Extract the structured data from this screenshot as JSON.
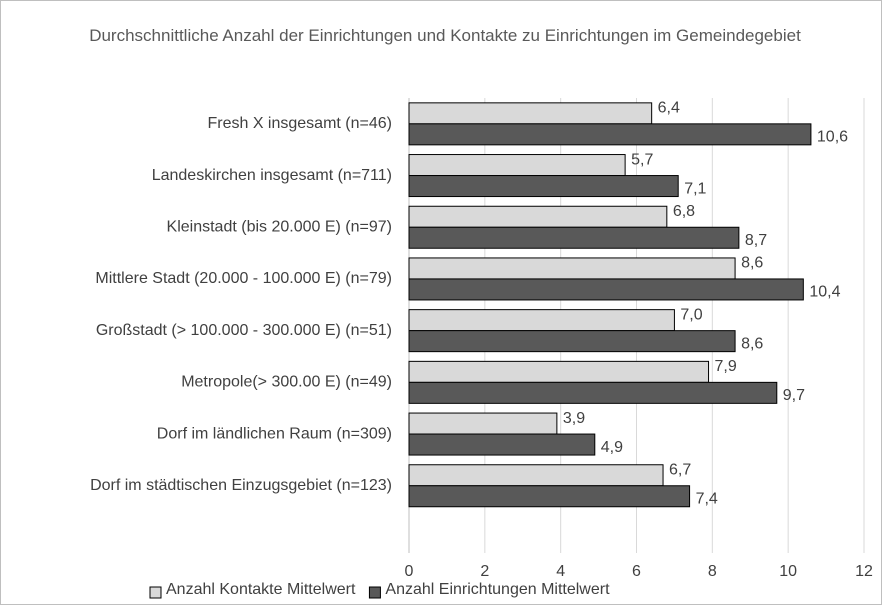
{
  "chart_data": {
    "type": "bar",
    "orientation": "horizontal",
    "title": "Durchschnittliche Anzahl der Einrichtungen und Kontakte zu Einrichtungen im Gemeindegebiet",
    "categories": [
      "Fresh X insgesamt (n=46)",
      "Landeskirchen insgesamt (n=711)",
      "Kleinstadt (bis 20.000 E) (n=97)",
      "Mittlere Stadt (20.000 - 100.000 E) (n=79)",
      "Großstadt (> 100.000 - 300.000 E) (n=51)",
      "Metropole(> 300.00 E)  (n=49)",
      "Dorf im ländlichen Raum (n=309)",
      "Dorf im städtischen Einzugsgebiet (n=123)"
    ],
    "series": [
      {
        "name": "Anzahl Kontakte Mittelwert",
        "color": "#d9d9d9",
        "values": [
          6.4,
          5.7,
          6.8,
          8.6,
          7.0,
          7.9,
          3.9,
          6.7
        ],
        "value_labels": [
          "6,4",
          "5,7",
          "6,8",
          "8,6",
          "7,0",
          "7,9",
          "3,9",
          "6,7"
        ]
      },
      {
        "name": "Anzahl Einrichtungen Mittelwert",
        "color": "#595959",
        "values": [
          10.6,
          7.1,
          8.7,
          10.4,
          8.6,
          9.7,
          4.9,
          7.4
        ],
        "value_labels": [
          "10,6",
          "7,1",
          "8,7",
          "10,4",
          "8,6",
          "9,7",
          "4,9",
          "7,4"
        ]
      }
    ],
    "xlim": [
      0,
      12
    ],
    "xticks": [
      0,
      2,
      4,
      6,
      8,
      10,
      12
    ],
    "grid": true,
    "legend": "bottom"
  }
}
